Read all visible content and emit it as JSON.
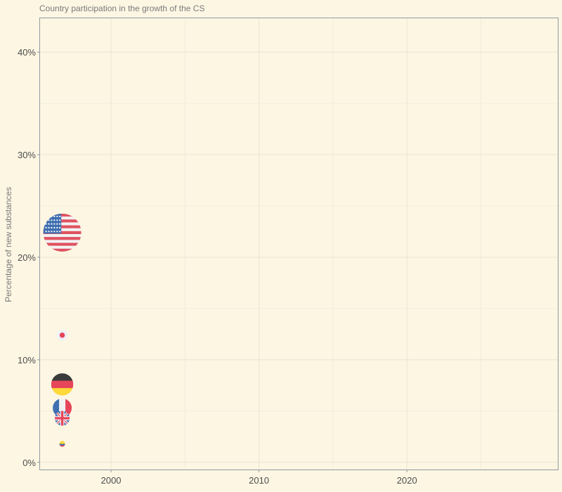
{
  "chart_data": {
    "type": "scatter",
    "title": "Country participation in the growth of the CS",
    "xlabel": "",
    "ylabel": "Percentage of new substances",
    "x_ticks": [
      2000,
      2010,
      2020
    ],
    "y_ticks": [
      "0%",
      "10%",
      "20%",
      "30%",
      "40%"
    ],
    "y_tick_values": [
      0,
      10,
      20,
      30,
      40
    ],
    "xlim": [
      1995.2,
      2030.2
    ],
    "ylim": [
      -0.7,
      43.3
    ],
    "grid": true,
    "series": [
      {
        "country": "United States",
        "icon": "us-flag-icon",
        "x": 1996.7,
        "y": 22.4,
        "size": 3.6
      },
      {
        "country": "Japan",
        "icon": "japan-flag-icon",
        "x": 1996.7,
        "y": 12.4,
        "size": 1.0
      },
      {
        "country": "Germany",
        "icon": "germany-flag-icon",
        "x": 1996.7,
        "y": 7.6,
        "size": 2.1
      },
      {
        "country": "France",
        "icon": "france-flag-icon",
        "x": 1996.7,
        "y": 5.3,
        "size": 1.8
      },
      {
        "country": "United Kingdom",
        "icon": "uk-flag-icon",
        "x": 1996.7,
        "y": 4.3,
        "size": 1.4
      },
      {
        "country": "Colombia",
        "icon": "colombia-flag-icon",
        "x": 1996.7,
        "y": 1.8,
        "size": 0.55
      }
    ]
  }
}
